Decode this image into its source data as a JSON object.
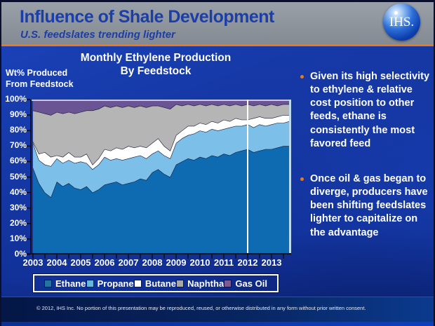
{
  "theme": {
    "accent_orange": "#e8791e",
    "header_gray": "#8e939b",
    "title_blue": "#1c3ea8",
    "body_blue": "#13339c",
    "footer_navy": "#07255f"
  },
  "header": {
    "title": "Influence of Shale Development",
    "subtitle": "U.S. feedslates trending lighter",
    "logo_text": "IHS."
  },
  "chart": {
    "title_line1": "Monthly Ethylene Production",
    "title_line2": "By Feedstock",
    "y_axis_label_line1": "Wt% Produced",
    "y_axis_label_line2": "From Feedstock"
  },
  "bullets": [
    {
      "text": "Given its high selectivity to ethylene & relative cost position to other feeds, ethane is consistently the most favored feed"
    },
    {
      "text": "Once oil & gas began to diverge, producers have been shifting feedslates lighter to capitalize on the advantage"
    }
  ],
  "footer": {
    "text": "© 2012, IHS Inc. No portion of this presentation may be reproduced, reused, or otherwise distributed in any form without prior written consent."
  },
  "chart_data": {
    "type": "area",
    "stacked": true,
    "title": "Monthly Ethylene Production By Feedstock",
    "ylabel": "Wt% Produced From Feedstock",
    "unit": "%",
    "ylim": [
      0,
      100
    ],
    "y_ticks": [
      0,
      10,
      20,
      30,
      40,
      50,
      60,
      70,
      80,
      90,
      100
    ],
    "x_tick_labels": [
      "2003",
      "2004",
      "2005",
      "2006",
      "2007",
      "2008",
      "2009",
      "2010",
      "2011",
      "2012",
      "2013"
    ],
    "annotation_line_x": 2012,
    "legend_position": "bottom",
    "x": [
      2003.0,
      2003.25,
      2003.5,
      2003.75,
      2004.0,
      2004.25,
      2004.5,
      2004.75,
      2005.0,
      2005.25,
      2005.5,
      2005.75,
      2006.0,
      2006.25,
      2006.5,
      2006.75,
      2007.0,
      2007.25,
      2007.5,
      2007.75,
      2008.0,
      2008.25,
      2008.5,
      2008.75,
      2009.0,
      2009.25,
      2009.5,
      2009.75,
      2010.0,
      2010.25,
      2010.5,
      2010.75,
      2011.0,
      2011.25,
      2011.5,
      2011.75,
      2012.0,
      2012.25,
      2012.5,
      2012.75,
      2013.0,
      2013.25,
      2013.5,
      2013.75
    ],
    "series": [
      {
        "name": "Ethane",
        "color": "#0e6bb2",
        "legend_color": "#25749e",
        "values": [
          56,
          46,
          40,
          37,
          47,
          44,
          46,
          43,
          42,
          44,
          40,
          42,
          45,
          46,
          47,
          45,
          46,
          47,
          49,
          48,
          53,
          55,
          52,
          50,
          58,
          60,
          62,
          61,
          63,
          62,
          64,
          63,
          65,
          64,
          66,
          67,
          68,
          66,
          67,
          68,
          68,
          69,
          70,
          70
        ]
      },
      {
        "name": "Propane",
        "color": "#7cc0ea",
        "legend_color": "#66b6da",
        "values": [
          16,
          15,
          18,
          20,
          15,
          15,
          15,
          16,
          18,
          15,
          15,
          16,
          18,
          15,
          15,
          16,
          16,
          16,
          15,
          14,
          12,
          12,
          12,
          12,
          14,
          15,
          15,
          17,
          17,
          17,
          17,
          17,
          16,
          18,
          17,
          16,
          16,
          16,
          17,
          15,
          16,
          16,
          15,
          16
        ]
      },
      {
        "name": "Butane",
        "color": "#ffffff",
        "legend_color": "#ffffff",
        "values": [
          1,
          4,
          8,
          6,
          2,
          4,
          5,
          4,
          3,
          6,
          3,
          4,
          5,
          6,
          7,
          7,
          8,
          6,
          6,
          7,
          7,
          8,
          6,
          5,
          5,
          5,
          6,
          5,
          5,
          5,
          5,
          5,
          6,
          4,
          5,
          4,
          3,
          6,
          5,
          5,
          4,
          4,
          5,
          4
        ]
      },
      {
        "name": "Naphtha",
        "color": "#b5b5b5",
        "legend_color": "#a8a8a8",
        "values": [
          20,
          27,
          25,
          27,
          28,
          28,
          26,
          28,
          29,
          28,
          35,
          32,
          28,
          28,
          27,
          27,
          26,
          26,
          26,
          26,
          24,
          21,
          25,
          27,
          20,
          16,
          14,
          13,
          12,
          12,
          11,
          11,
          10,
          10,
          9,
          9,
          10,
          8,
          8,
          8,
          9,
          7,
          7,
          7
        ]
      },
      {
        "name": "Gas Oil",
        "color": "#6a5494",
        "legend_color": "#7e5a8e",
        "values": [
          7,
          8,
          9,
          10,
          8,
          9,
          8,
          9,
          8,
          7,
          7,
          6,
          4,
          5,
          4,
          5,
          4,
          5,
          4,
          5,
          4,
          4,
          5,
          6,
          3,
          4,
          3,
          4,
          3,
          4,
          3,
          4,
          3,
          4,
          3,
          4,
          3,
          4,
          3,
          4,
          3,
          4,
          3,
          3
        ]
      }
    ]
  }
}
